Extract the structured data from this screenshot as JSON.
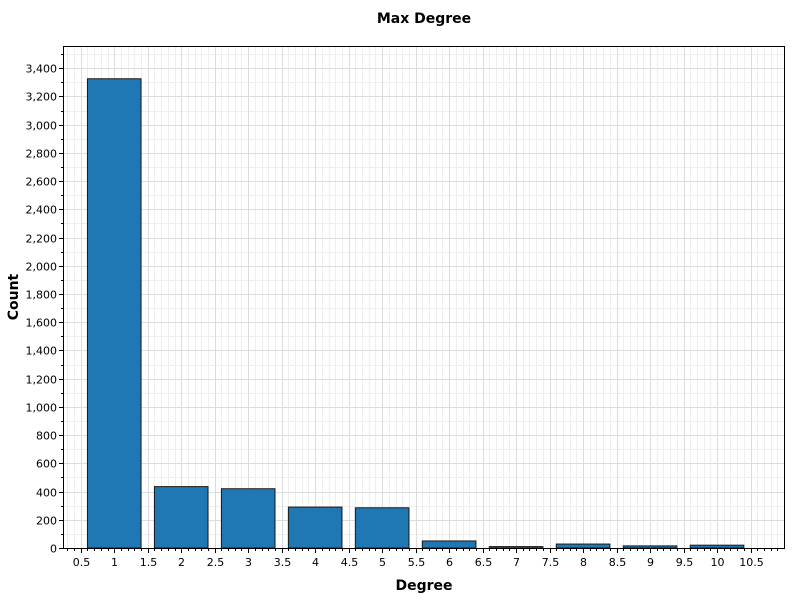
{
  "chart_data": {
    "type": "bar",
    "title": "Max Degree",
    "xlabel": "Degree",
    "ylabel": "Count",
    "xlim": [
      0.25,
      11
    ],
    "ylim": [
      0,
      3550
    ],
    "x_ticks": [
      "0.5",
      "1",
      "1.5",
      "2",
      "2.5",
      "3",
      "3.5",
      "4",
      "4.5",
      "5",
      "5.5",
      "6",
      "6.5",
      "7",
      "7.5",
      "8",
      "8.5",
      "9",
      "9.5",
      "10",
      "10.5"
    ],
    "y_ticks": [
      "0",
      "200",
      "400",
      "600",
      "800",
      "1,000",
      "1,200",
      "1,400",
      "1,600",
      "1,800",
      "2,000",
      "2,200",
      "2,400",
      "2,600",
      "2,800",
      "3,000",
      "3,200",
      "3,400"
    ],
    "grid": true,
    "bar_color": "#1f77b4",
    "bars": [
      {
        "x_start": 0.6,
        "x_end": 1.4,
        "value": 3325
      },
      {
        "x_start": 1.6,
        "x_end": 2.4,
        "value": 435
      },
      {
        "x_start": 2.6,
        "x_end": 3.4,
        "value": 420
      },
      {
        "x_start": 3.6,
        "x_end": 4.4,
        "value": 290
      },
      {
        "x_start": 4.6,
        "x_end": 5.4,
        "value": 285
      },
      {
        "x_start": 5.6,
        "x_end": 6.4,
        "value": 50
      },
      {
        "x_start": 6.6,
        "x_end": 7.4,
        "value": 10
      },
      {
        "x_start": 7.6,
        "x_end": 8.4,
        "value": 28
      },
      {
        "x_start": 8.6,
        "x_end": 9.4,
        "value": 15
      },
      {
        "x_start": 9.6,
        "x_end": 10.4,
        "value": 20
      }
    ]
  }
}
